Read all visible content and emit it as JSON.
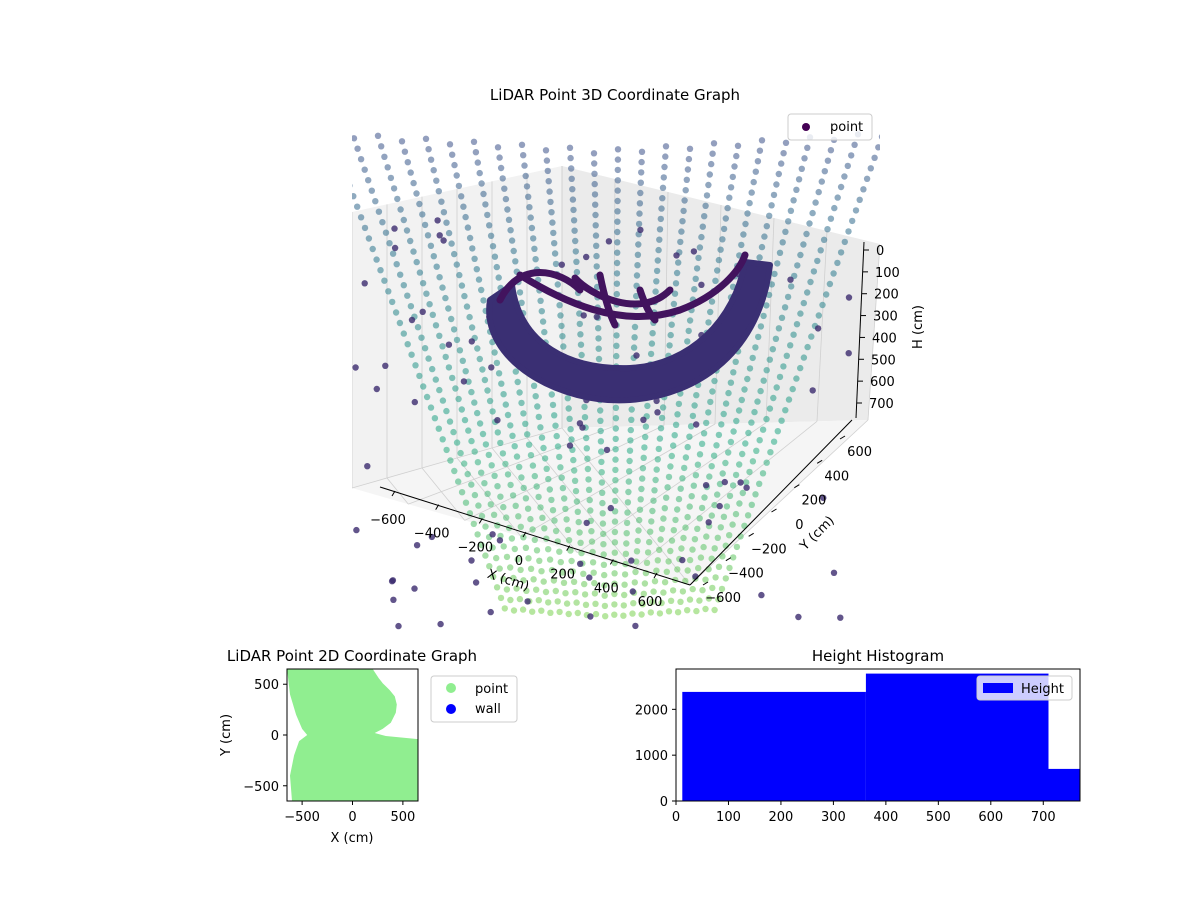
{
  "chart_data": [
    {
      "type": "scatter",
      "projection": "3d",
      "title": "LiDAR Point 3D Coordinate Graph",
      "xlabel": "X (cm)",
      "ylabel": "Y (cm)",
      "zlabel": "H (cm)",
      "x_ticks": [
        "−600",
        "−400",
        "−200",
        "0",
        "200",
        "400",
        "600"
      ],
      "y_ticks": [
        "−600",
        "−400",
        "−200",
        "0",
        "200",
        "400",
        "600"
      ],
      "z_ticks": [
        "0",
        "100",
        "200",
        "300",
        "400",
        "500",
        "600",
        "700"
      ],
      "xlim": [
        -700,
        700
      ],
      "ylim": [
        -700,
        700
      ],
      "zlim": [
        0,
        750
      ],
      "z_inverted": true,
      "grid": true,
      "colormap": "viridis",
      "legend": {
        "position": "top-right",
        "entries": [
          "point"
        ]
      },
      "colors": {
        "legend_marker": "#440154"
      }
    },
    {
      "type": "scatter",
      "title": "LiDAR Point 2D Coordinate Graph",
      "xlabel": "X (cm)",
      "ylabel": "Y (cm)",
      "x_ticks": [
        -500,
        0,
        500
      ],
      "y_ticks": [
        -500,
        0,
        500
      ],
      "xlim": [
        -650,
        650
      ],
      "ylim": [
        -650,
        650
      ],
      "series": [
        {
          "name": "point",
          "color": "#90ee90",
          "outline": [
            [
              -650,
              650
            ],
            [
              200,
              650
            ],
            [
              260,
              560
            ],
            [
              300,
              510
            ],
            [
              330,
              480
            ],
            [
              370,
              440
            ],
            [
              420,
              380
            ],
            [
              440,
              300
            ],
            [
              430,
              220
            ],
            [
              380,
              120
            ],
            [
              300,
              60
            ],
            [
              220,
              20
            ],
            [
              330,
              -10
            ],
            [
              650,
              -40
            ],
            [
              650,
              -650
            ],
            [
              -600,
              -650
            ],
            [
              -620,
              -400
            ],
            [
              -580,
              -200
            ],
            [
              -530,
              -60
            ],
            [
              -450,
              0
            ],
            [
              -500,
              60
            ],
            [
              -560,
              200
            ],
            [
              -620,
              400
            ],
            [
              -650,
              650
            ]
          ]
        },
        {
          "name": "wall",
          "color": "#0000ff",
          "points": []
        }
      ],
      "legend": {
        "position": "outside-right",
        "entries": [
          "point",
          "wall"
        ]
      }
    },
    {
      "type": "bar",
      "title": "Height Histogram",
      "xlabel": "",
      "ylabel": "",
      "bins": [
        {
          "x0": 12,
          "x1": 362,
          "value": 2380
        },
        {
          "x0": 362,
          "x1": 710,
          "value": 2780
        },
        {
          "x0": 710,
          "x1": 770,
          "value": 700
        }
      ],
      "x_ticks": [
        0,
        100,
        200,
        300,
        400,
        500,
        600,
        700
      ],
      "y_ticks": [
        0,
        1000,
        2000
      ],
      "xlim": [
        0,
        770
      ],
      "ylim": [
        0,
        2880
      ],
      "color": "#0000ff",
      "legend": {
        "position": "top-right",
        "entries": [
          "Height"
        ]
      }
    }
  ]
}
